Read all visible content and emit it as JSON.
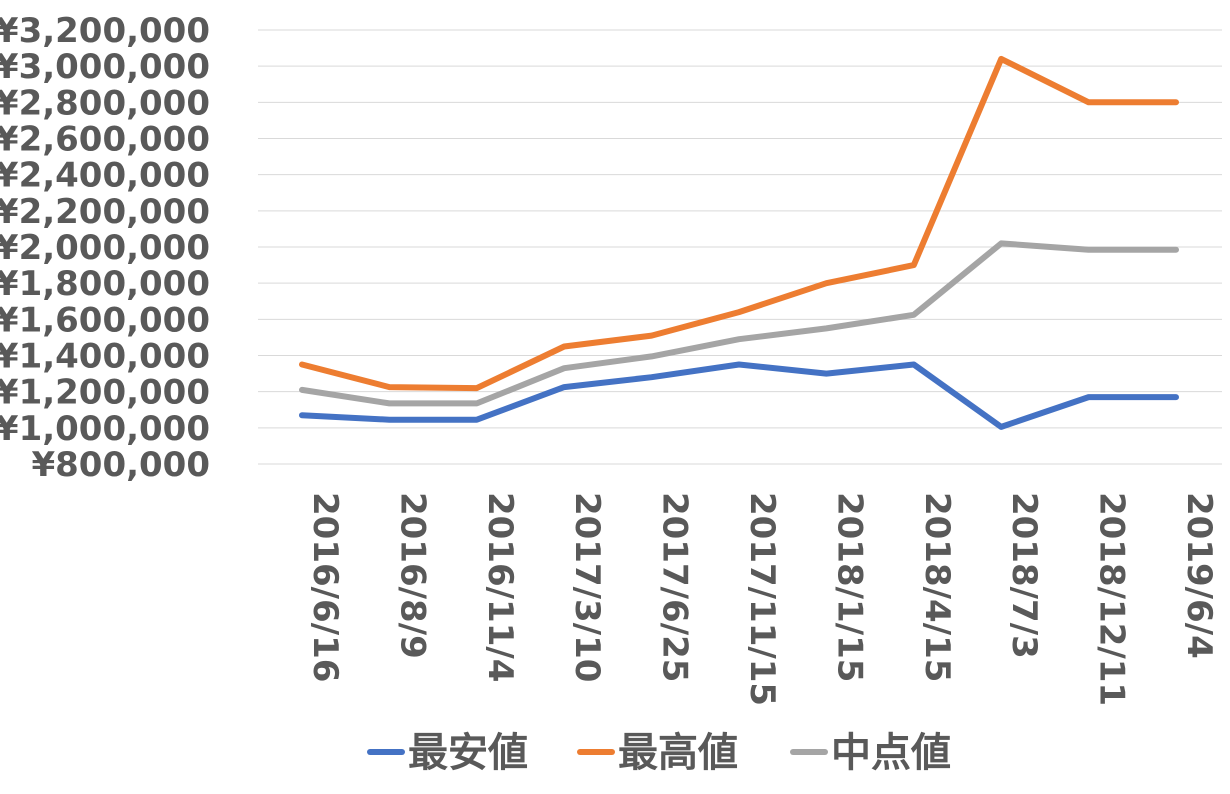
{
  "chart_data": {
    "type": "line",
    "categories": [
      "2016/6/16",
      "2016/8/9",
      "2016/11/4",
      "2017/3/10",
      "2017/6/25",
      "2017/11/15",
      "2018/1/15",
      "2018/4/15",
      "2018/7/3",
      "2018/12/11",
      "2019/6/4"
    ],
    "series": [
      {
        "name": "最安値",
        "color": "#4472c4",
        "values": [
          1070000,
          1045000,
          1045000,
          1225000,
          1280000,
          1350000,
          1300000,
          1350000,
          1005000,
          1170000,
          1170000
        ]
      },
      {
        "name": "最高値",
        "color": "#ed7d31",
        "values": [
          1350000,
          1225000,
          1220000,
          1450000,
          1510000,
          1640000,
          1800000,
          1900000,
          3040000,
          2800000,
          2800000
        ]
      },
      {
        "name": "中点値",
        "color": "#a5a5a5",
        "values": [
          1210000,
          1135000,
          1135000,
          1330000,
          1395000,
          1490000,
          1550000,
          1625000,
          2020000,
          1985000,
          1985000
        ]
      }
    ],
    "yticks": [
      "¥800,000",
      "¥1,000,000",
      "¥1,200,000",
      "¥1,400,000",
      "¥1,600,000",
      "¥1,800,000",
      "¥2,000,000",
      "¥2,200,000",
      "¥2,400,000",
      "¥2,600,000",
      "¥2,800,000",
      "¥3,000,000",
      "¥3,200,000"
    ],
    "ylim": [
      800000,
      3200000
    ],
    "ystep": 200000,
    "grid": true,
    "legend_position": "bottom"
  }
}
